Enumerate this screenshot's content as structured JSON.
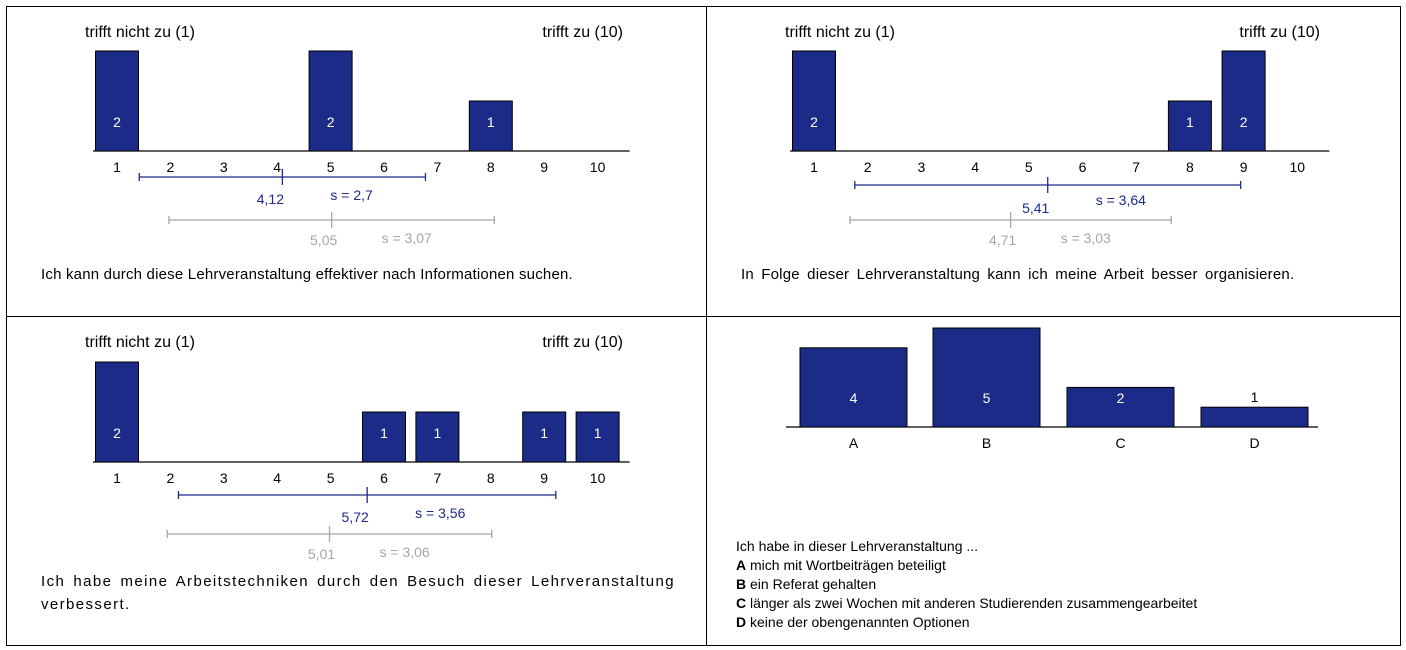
{
  "colors": {
    "bar": "#1c2b88",
    "bar_label": "#ffffff",
    "own_stats": "#1c2b88",
    "reference_stats": "#a6a6a6",
    "axis": "#000000"
  },
  "panels": [
    {
      "question": "Ich kann durch diese Lehrveranstaltung effektiver nach Informationen suchen.",
      "chart_data": {
        "type": "bar",
        "categories": [
          "1",
          "2",
          "3",
          "4",
          "5",
          "6",
          "7",
          "8",
          "9",
          "10"
        ],
        "values": [
          2,
          0,
          0,
          0,
          2,
          0,
          0,
          1,
          0,
          0
        ],
        "left_label": "trifft nicht zu (1)",
        "right_label": "trifft zu (10)",
        "ylim": [
          0,
          2
        ],
        "mean": 4.12,
        "mean_label": "4,12",
        "sd": 2.7,
        "sd_label": "s = 2,7",
        "ref_mean": 5.05,
        "ref_mean_label": "5,05",
        "ref_sd": 3.07,
        "ref_sd_label": "s = 3,07"
      }
    },
    {
      "question": "In Folge dieser Lehrveranstaltung kann ich meine Arbeit besser organisieren.",
      "chart_data": {
        "type": "bar",
        "categories": [
          "1",
          "2",
          "3",
          "4",
          "5",
          "6",
          "7",
          "8",
          "9",
          "10"
        ],
        "values": [
          2,
          0,
          0,
          0,
          0,
          0,
          0,
          1,
          2,
          0
        ],
        "left_label": "trifft nicht zu (1)",
        "right_label": "trifft zu (10)",
        "ylim": [
          0,
          2
        ],
        "mean": 5.41,
        "mean_label": "5,41",
        "sd": 3.64,
        "sd_label": "s = 3,64",
        "ref_mean": 4.71,
        "ref_mean_label": "4,71",
        "ref_sd": 3.03,
        "ref_sd_label": "s = 3,03"
      }
    },
    {
      "question": "Ich habe meine Arbeitstechniken durch den Besuch dieser Lehrveranstaltung verbessert.",
      "chart_data": {
        "type": "bar",
        "categories": [
          "1",
          "2",
          "3",
          "4",
          "5",
          "6",
          "7",
          "8",
          "9",
          "10"
        ],
        "values": [
          2,
          0,
          0,
          0,
          0,
          1,
          1,
          0,
          1,
          1
        ],
        "left_label": "trifft nicht zu (1)",
        "right_label": "trifft zu (10)",
        "ylim": [
          0,
          2
        ],
        "mean": 5.72,
        "mean_label": "5,72",
        "sd": 3.56,
        "sd_label": "s = 3,56",
        "ref_mean": 5.01,
        "ref_mean_label": "5,01",
        "ref_sd": 3.06,
        "ref_sd_label": "s = 3,06"
      }
    }
  ],
  "choice_panel": {
    "intro": "Ich habe in dieser Lehrveranstaltung  ...",
    "options": [
      {
        "key": "A",
        "text": "mich mit Wortbeiträgen beteiligt"
      },
      {
        "key": "B",
        "text": "ein Referat gehalten"
      },
      {
        "key": "C",
        "text": "länger als zwei Wochen mit anderen Studierenden zusammengearbeitet"
      },
      {
        "key": "D",
        "text": "keine der obengenannten Optionen"
      }
    ],
    "chart_data": {
      "type": "bar",
      "categories": [
        "A",
        "B",
        "C",
        "D"
      ],
      "values": [
        4,
        5,
        2,
        1
      ],
      "ylim": [
        0,
        5
      ]
    }
  }
}
